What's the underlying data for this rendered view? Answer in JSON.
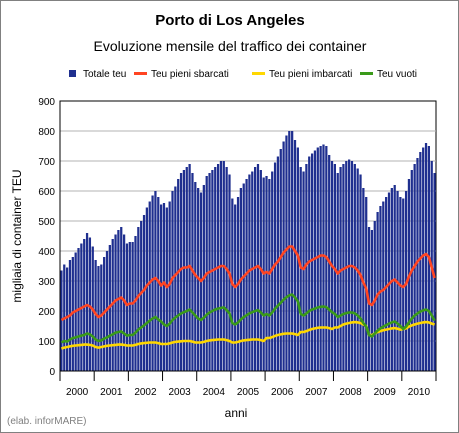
{
  "chart_data": {
    "type": "bar",
    "title": "Porto di Los Angeles",
    "subtitle": "Evoluzione mensile del traffico dei container",
    "xlabel": "anni",
    "ylabel": "migliaia di container TEU",
    "ylim": [
      0,
      900
    ],
    "yticks": [
      0,
      100,
      200,
      300,
      400,
      500,
      600,
      700,
      800,
      900
    ],
    "grid": true,
    "legend_position": "top",
    "years": [
      "2000",
      "2001",
      "2002",
      "2003",
      "2004",
      "2005",
      "2006",
      "2007",
      "2008",
      "2009",
      "2010"
    ],
    "months_per_year": 12,
    "series": [
      {
        "name": "Totale teu",
        "kind": "bar",
        "color": "#1f2f8f",
        "values": [
          335,
          355,
          345,
          370,
          380,
          395,
          410,
          425,
          440,
          460,
          445,
          415,
          370,
          350,
          355,
          380,
          400,
          420,
          440,
          455,
          470,
          480,
          455,
          425,
          430,
          430,
          450,
          480,
          500,
          520,
          545,
          565,
          585,
          600,
          580,
          555,
          560,
          545,
          565,
          600,
          615,
          640,
          660,
          670,
          680,
          690,
          660,
          630,
          610,
          595,
          620,
          650,
          660,
          670,
          680,
          690,
          700,
          700,
          680,
          655,
          575,
          555,
          580,
          610,
          625,
          640,
          655,
          665,
          680,
          690,
          670,
          645,
          650,
          640,
          665,
          695,
          715,
          740,
          765,
          785,
          800,
          800,
          770,
          745,
          680,
          665,
          690,
          715,
          725,
          735,
          745,
          750,
          755,
          750,
          720,
          700,
          690,
          660,
          680,
          690,
          700,
          705,
          700,
          690,
          675,
          655,
          610,
          580,
          480,
          470,
          500,
          530,
          550,
          565,
          580,
          595,
          610,
          620,
          600,
          580,
          575,
          600,
          640,
          670,
          690,
          710,
          730,
          745,
          760,
          750,
          700,
          660
        ]
      },
      {
        "name": "Teu pieni sbarcati",
        "kind": "line",
        "color": "#ff4422",
        "values": [
          170,
          175,
          180,
          185,
          195,
          200,
          205,
          210,
          215,
          220,
          215,
          205,
          190,
          180,
          185,
          195,
          205,
          215,
          225,
          235,
          240,
          245,
          235,
          220,
          225,
          225,
          235,
          250,
          260,
          270,
          285,
          295,
          305,
          310,
          300,
          285,
          295,
          280,
          290,
          310,
          320,
          330,
          340,
          345,
          345,
          350,
          335,
          320,
          310,
          300,
          310,
          325,
          330,
          335,
          340,
          345,
          350,
          350,
          340,
          325,
          290,
          280,
          290,
          305,
          315,
          325,
          335,
          340,
          345,
          350,
          340,
          325,
          330,
          325,
          340,
          355,
          365,
          380,
          395,
          405,
          415,
          415,
          400,
          385,
          345,
          340,
          355,
          365,
          370,
          375,
          380,
          385,
          385,
          380,
          365,
          350,
          340,
          325,
          335,
          340,
          345,
          350,
          350,
          345,
          335,
          320,
          295,
          275,
          225,
          220,
          235,
          255,
          265,
          270,
          280,
          290,
          300,
          305,
          295,
          285,
          280,
          290,
          315,
          335,
          350,
          365,
          375,
          385,
          390,
          380,
          345,
          310
        ]
      },
      {
        "name": "Teu pieni imbarcati",
        "kind": "line",
        "color": "#ffd700",
        "values": [
          75,
          78,
          80,
          82,
          84,
          85,
          86,
          87,
          88,
          88,
          87,
          85,
          80,
          78,
          80,
          82,
          84,
          85,
          86,
          87,
          88,
          88,
          87,
          85,
          85,
          85,
          87,
          90,
          92,
          93,
          94,
          95,
          95,
          95,
          93,
          90,
          90,
          90,
          92,
          95,
          97,
          98,
          99,
          100,
          100,
          100,
          98,
          95,
          95,
          95,
          97,
          100,
          102,
          103,
          104,
          105,
          105,
          105,
          103,
          100,
          95,
          95,
          97,
          100,
          102,
          103,
          104,
          105,
          105,
          105,
          103,
          100,
          110,
          110,
          113,
          117,
          120,
          122,
          124,
          125,
          125,
          125,
          123,
          120,
          130,
          130,
          133,
          137,
          140,
          142,
          144,
          145,
          145,
          145,
          143,
          140,
          145,
          145,
          150,
          155,
          158,
          160,
          162,
          163,
          162,
          160,
          155,
          150,
          120,
          120,
          125,
          130,
          133,
          136,
          138,
          140,
          142,
          143,
          141,
          138,
          140,
          142,
          148,
          152,
          155,
          158,
          160,
          162,
          163,
          162,
          158,
          155
        ]
      },
      {
        "name": "Teu vuoti",
        "kind": "line",
        "color": "#3a9a1a",
        "values": [
          95,
          100,
          98,
          105,
          110,
          112,
          115,
          118,
          120,
          125,
          122,
          115,
          105,
          100,
          102,
          108,
          112,
          118,
          122,
          128,
          130,
          132,
          125,
          118,
          120,
          120,
          128,
          138,
          145,
          152,
          160,
          168,
          175,
          180,
          172,
          165,
          155,
          150,
          158,
          170,
          178,
          185,
          192,
          196,
          200,
          205,
          195,
          185,
          175,
          170,
          178,
          188,
          195,
          200,
          205,
          208,
          210,
          212,
          203,
          192,
          160,
          155,
          162,
          172,
          180,
          186,
          192,
          196,
          200,
          203,
          195,
          185,
          190,
          185,
          195,
          208,
          218,
          228,
          238,
          246,
          252,
          255,
          245,
          232,
          190,
          185,
          192,
          200,
          205,
          208,
          212,
          214,
          215,
          213,
          205,
          196,
          190,
          180,
          185,
          190,
          193,
          195,
          195,
          192,
          185,
          175,
          160,
          148,
          120,
          115,
          125,
          135,
          142,
          148,
          153,
          158,
          162,
          165,
          158,
          150,
          140,
          148,
          162,
          175,
          185,
          192,
          198,
          202,
          205,
          200,
          185,
          168
        ]
      }
    ]
  },
  "credit": "(elab. inforMARE)"
}
